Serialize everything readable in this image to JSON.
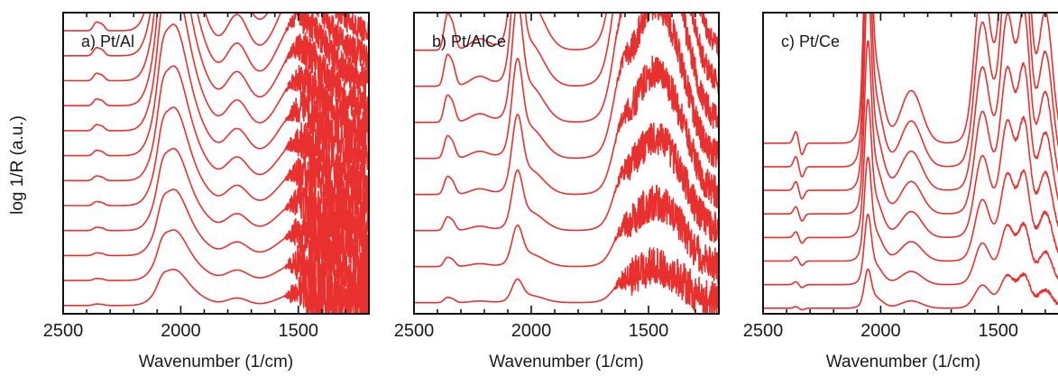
{
  "figure": {
    "ylabel": "log 1/R (a.u.)",
    "trace_color": "#e8312f"
  },
  "chart_data": [
    {
      "type": "line",
      "panel_label": "a) Pt/Al",
      "xlabel": "Wavenumber (1/cm)",
      "ylabel": "log 1/R (a.u.)",
      "xlim": [
        2500,
        1200
      ],
      "x_reversed": true,
      "xticks": [
        2500,
        2000,
        1500
      ],
      "xtick_labels": [
        "2500",
        "2000",
        "1500"
      ],
      "yticks_shown": false,
      "num_traces": 12,
      "offset_step": 0.09,
      "baseline": 0.03,
      "top_scale": 0.72,
      "noise": {
        "start": 1560,
        "amplitude": 0.09
      },
      "components": [
        {
          "center": 2035,
          "width": 55,
          "height": 1.0
        },
        {
          "center": 2080,
          "width": 18,
          "height": 0.18
        },
        {
          "center": 1940,
          "width": 60,
          "height": 0.25
        },
        {
          "center": 1760,
          "width": 45,
          "height": 0.22
        },
        {
          "center": 1520,
          "width": 70,
          "height": 0.28
        },
        {
          "center": 1420,
          "width": 80,
          "height": 0.18
        },
        {
          "center": 2360,
          "width": 12,
          "height": 0.04
        },
        {
          "center": 2335,
          "width": 12,
          "height": 0.03
        }
      ]
    },
    {
      "type": "line",
      "panel_label": "b) Pt/AlCe",
      "xlabel": "Wavenumber (1/cm)",
      "ylabel": "",
      "xlim": [
        2500,
        1200
      ],
      "x_reversed": true,
      "xticks": [
        2500,
        2000,
        1500
      ],
      "xtick_labels": [
        "2500",
        "2000",
        "1500"
      ],
      "yticks_shown": false,
      "num_traces": 8,
      "offset_step": 0.13,
      "baseline": 0.04,
      "top_scale": 0.82,
      "noise": {
        "start": 1650,
        "amplitude": 0.07
      },
      "components": [
        {
          "center": 2060,
          "width": 22,
          "height": 0.55
        },
        {
          "center": 2010,
          "width": 60,
          "height": 0.22
        },
        {
          "center": 1500,
          "width": 85,
          "height": 0.95
        },
        {
          "center": 1380,
          "width": 70,
          "height": 0.45
        },
        {
          "center": 1620,
          "width": 35,
          "height": 0.28
        },
        {
          "center": 2360,
          "width": 13,
          "height": 0.14
        },
        {
          "center": 2335,
          "width": 13,
          "height": 0.1
        },
        {
          "center": 2220,
          "width": 40,
          "height": 0.05
        }
      ]
    },
    {
      "type": "line",
      "panel_label": "c) Pt/Ce",
      "xlabel": "Wavenumber (1/cm)",
      "ylabel": "",
      "xlim": [
        2500,
        1200
      ],
      "x_reversed": true,
      "xticks": [
        2500,
        2000,
        1500
      ],
      "xtick_labels": [
        "2500",
        "2000",
        "1500"
      ],
      "yticks_shown": false,
      "num_traces": 8,
      "offset_step": 0.085,
      "baseline": 0.02,
      "top_scale": 0.86,
      "noise": {
        "start": 1500,
        "amplitude": 0.006
      },
      "components": [
        {
          "center": 2055,
          "width": 14,
          "height": 0.9
        },
        {
          "center": 2030,
          "width": 35,
          "height": 0.35
        },
        {
          "center": 1870,
          "width": 45,
          "height": 0.22
        },
        {
          "center": 1570,
          "width": 30,
          "height": 0.55
        },
        {
          "center": 1460,
          "width": 28,
          "height": 0.85
        },
        {
          "center": 1390,
          "width": 26,
          "height": 0.95
        },
        {
          "center": 1300,
          "width": 30,
          "height": 0.55
        },
        {
          "center": 1520,
          "width": 60,
          "height": 0.2
        },
        {
          "center": 2360,
          "width": 10,
          "height": 0.05
        },
        {
          "center": 2335,
          "width": 10,
          "height": -0.05
        }
      ]
    }
  ]
}
